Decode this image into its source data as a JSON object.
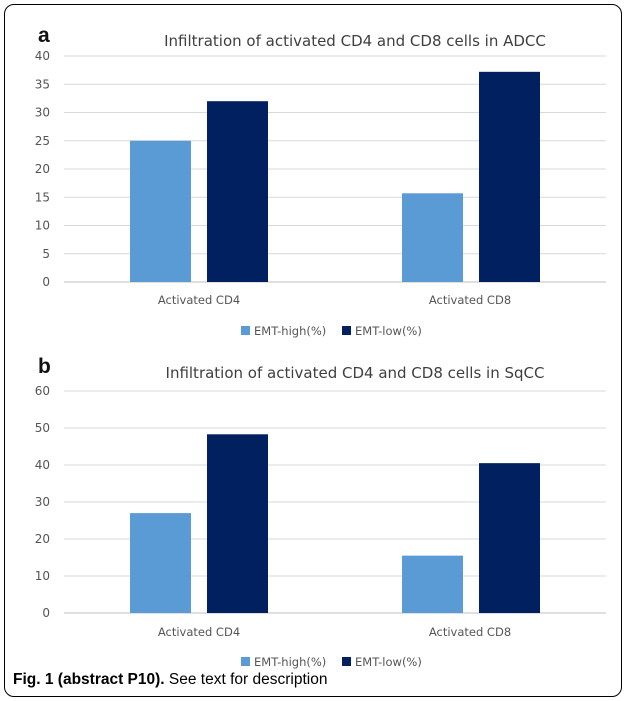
{
  "colors": {
    "emt_high": "#5b9bd5",
    "emt_low": "#002060",
    "grid": "#d9d9d9"
  },
  "chart_data": [
    {
      "panel": "a",
      "type": "bar",
      "title": "Infiltration of activated CD4 and CD8 cells in ADCC",
      "categories": [
        "Activated CD4",
        "Activated CD8"
      ],
      "series": [
        {
          "name": "EMT-high(%)",
          "values": [
            25,
            15.7
          ]
        },
        {
          "name": "EMT-low(%)",
          "values": [
            32,
            37.2
          ]
        }
      ],
      "ylim": [
        0,
        40
      ],
      "yticks": [
        0,
        5,
        10,
        15,
        20,
        25,
        30,
        35,
        40
      ],
      "grid": true,
      "legend": "bottom"
    },
    {
      "panel": "b",
      "type": "bar",
      "title": "Infiltration of activated CD4 and CD8 cells in SqCC",
      "categories": [
        "Activated CD4",
        "Activated CD8"
      ],
      "series": [
        {
          "name": "EMT-high(%)",
          "values": [
            27,
            15.5
          ]
        },
        {
          "name": "EMT-low(%)",
          "values": [
            48.3,
            40.5
          ]
        }
      ],
      "ylim": [
        0,
        60
      ],
      "yticks": [
        0,
        10,
        20,
        30,
        40,
        50,
        60
      ],
      "grid": true,
      "legend": "bottom"
    }
  ],
  "caption": {
    "label": "Fig. 1 (abstract P10).",
    "text": " See text for description"
  }
}
